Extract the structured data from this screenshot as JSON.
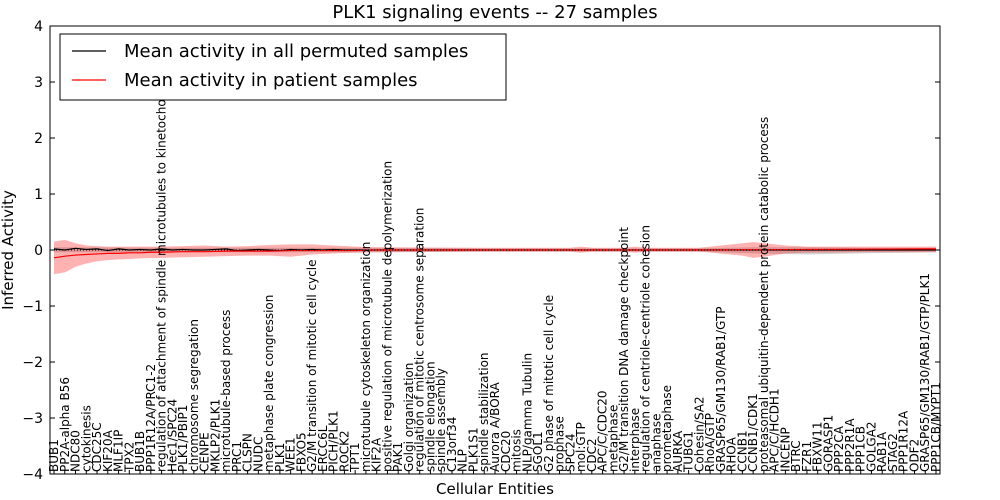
{
  "chart_data": {
    "type": "line",
    "title": "PLK1 signaling events -- 27 samples",
    "xlabel": "Cellular Entities",
    "ylabel": "Inferred Activity",
    "ylim": [
      -4,
      4
    ],
    "yticks": [
      "4",
      "3",
      "2",
      "1",
      "0",
      "−1",
      "−2",
      "−3",
      "−4"
    ],
    "ytick_values": [
      4,
      3,
      2,
      1,
      0,
      -1,
      -2,
      -3,
      -4
    ],
    "legend_position": "top-left",
    "colors": {
      "permuted_line": "#000000",
      "patient_line": "#ff0000",
      "patient_band": "#ff0000",
      "permuted_band": "#808080"
    },
    "categories": [
      "BUB1",
      "PP2A-alpha B56",
      "NDC80",
      "cytokinesis",
      "CDC25C",
      "KIF20A",
      "MLF1IP",
      "TPX2",
      "BUB1B",
      "PPP1R12A/PRC1-2",
      "regulation of attachment of spindle microtubules to kinetochore",
      "Hec1/SPC24",
      "PLK1/PBIP1",
      "chromosome segregation",
      "CENPE",
      "MKLP2/PLK1",
      "microtubule-based process",
      "PRC1",
      "CLSPN",
      "NUDC",
      "metaphase plate congression",
      "PLK1",
      "WEE1",
      "FBXO5",
      "G2/M transition of mitotic cell cycle",
      "ERCC6L",
      "PICH/PLK1",
      "ROCK2",
      "TPT1",
      "microtubule cytoskeleton organization",
      "KIF2A",
      "positive regulation of microtubule depolymerization",
      "PAK1",
      "Golgi organization",
      "regulation of mitotic centrosome separation",
      "spindle elongation",
      "spindle assembly",
      "C13orf34",
      "NLP",
      "PLK1S1",
      "spindle stabilization",
      "Aurora A/BORA",
      "CDC20",
      "mitosis",
      "NLP/gamma Tubulin",
      "SGOL1",
      "G2 phase of mitotic cell cycle",
      "prophase",
      "SPC24",
      "mol:GTP",
      "CDC2",
      "APC/C/CDC20",
      "metaphase",
      "G2/M transition DNA damage checkpoint",
      "interphase",
      "regulation of centriole-centriole cohesion",
      "anaphase",
      "prometaphase",
      "AURKA",
      "TUBG1",
      "Cohesin/SA2",
      "RhoA/GTP",
      "GRASP65/GM130/RAB1/GTP",
      "RHOA",
      "CCNB1",
      "CCNB1/CDK1",
      "proteasomal ubiquitin-dependent protein catabolic process",
      "APC/C/HCDH1",
      "INCENP",
      "BTRC",
      "FZR1",
      "FBXW11",
      "GORASP1",
      "PPP2CA",
      "PPP2R1A",
      "PPP1CB",
      "GOLGA2",
      "RAB1A",
      "STAG2",
      "PPP1R12A",
      "ODF2",
      "GRASP65/GM130/RAB1/GTP/PLK1",
      "PPP1CB/MYPT1"
    ],
    "series": [
      {
        "name": "Mean activity in all permuted samples",
        "x": [
          0,
          1,
          2,
          3,
          4,
          5,
          6,
          7,
          8,
          9,
          10,
          11,
          12,
          13,
          14,
          15,
          16,
          17,
          18,
          19,
          20,
          21,
          22,
          23,
          24,
          25,
          26,
          27,
          28,
          29,
          30,
          40,
          50,
          60,
          70,
          82
        ],
        "values": [
          0.02,
          0.0,
          0.03,
          0.01,
          0.02,
          -0.01,
          0.02,
          0.0,
          0.01,
          0.0,
          0.02,
          0.0,
          0.01,
          0.0,
          0.0,
          0.01,
          0.02,
          -0.01,
          0.0,
          0.01,
          0.0,
          -0.01,
          0.01,
          0.0,
          0.01,
          0.0,
          0.01,
          0.0,
          0.0,
          0.0,
          0.0,
          0.0,
          0.0,
          0.0,
          0.0,
          0.0
        ]
      },
      {
        "name": "Mean activity in patient samples",
        "x": [
          0,
          1,
          2,
          3,
          4,
          5,
          6,
          7,
          8,
          9,
          10,
          12,
          14,
          16,
          18,
          20,
          22,
          24,
          26,
          28,
          30,
          40,
          50,
          60,
          70,
          82
        ],
        "values": [
          -0.14,
          -0.11,
          -0.09,
          -0.08,
          -0.07,
          -0.06,
          -0.06,
          -0.05,
          -0.05,
          -0.04,
          -0.04,
          -0.03,
          -0.03,
          -0.02,
          -0.02,
          -0.02,
          -0.01,
          -0.01,
          -0.01,
          -0.01,
          0.0,
          0.0,
          0.0,
          0.0,
          0.01,
          0.02
        ]
      }
    ],
    "patient_band": {
      "x": [
        0,
        1,
        2,
        3,
        4,
        5,
        6,
        8,
        10,
        12,
        14,
        16,
        18,
        20,
        22,
        24,
        26,
        28,
        30,
        40,
        48,
        49,
        50,
        53,
        54,
        55,
        60,
        64,
        65,
        66,
        68,
        70,
        75,
        82
      ],
      "upper": [
        0.15,
        0.18,
        0.12,
        0.08,
        0.07,
        0.06,
        0.06,
        0.06,
        0.06,
        0.07,
        0.08,
        0.06,
        0.07,
        0.09,
        0.1,
        0.1,
        0.08,
        0.06,
        0.05,
        0.04,
        0.04,
        0.06,
        0.04,
        0.04,
        0.06,
        0.04,
        0.04,
        0.12,
        0.14,
        0.12,
        0.08,
        0.06,
        0.06,
        0.06
      ],
      "lower": [
        -0.43,
        -0.4,
        -0.3,
        -0.24,
        -0.2,
        -0.18,
        -0.17,
        -0.15,
        -0.14,
        -0.13,
        -0.12,
        -0.11,
        -0.1,
        -0.1,
        -0.12,
        -0.08,
        -0.06,
        -0.05,
        -0.04,
        -0.03,
        -0.03,
        -0.05,
        -0.03,
        -0.03,
        -0.05,
        -0.03,
        -0.03,
        -0.1,
        -0.14,
        -0.12,
        -0.06,
        -0.05,
        -0.04,
        -0.04
      ]
    },
    "permuted_band": {
      "x": [
        0,
        10,
        20,
        30,
        40,
        50,
        60,
        65,
        70,
        75,
        82
      ],
      "upper": [
        0.05,
        0.04,
        0.04,
        0.04,
        0.03,
        0.03,
        0.03,
        0.05,
        0.05,
        0.04,
        0.04
      ],
      "lower": [
        -0.04,
        -0.04,
        -0.04,
        -0.04,
        -0.03,
        -0.03,
        -0.03,
        -0.06,
        -0.08,
        -0.06,
        -0.04
      ]
    }
  }
}
